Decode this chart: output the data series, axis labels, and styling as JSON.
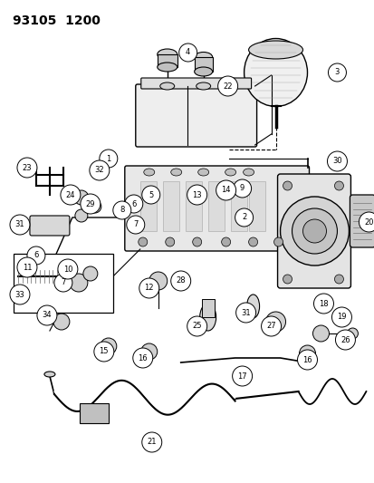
{
  "title": "93105  1200",
  "bg_color": "#ffffff",
  "fg_color": "#000000",
  "fig_width": 4.14,
  "fig_height": 5.33,
  "dpi": 100,
  "image_data": ""
}
